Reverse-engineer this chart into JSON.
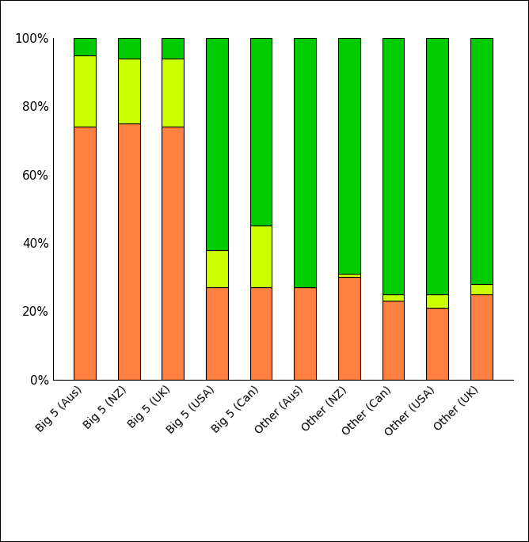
{
  "categories": [
    "Big 5 (Aus)",
    "Big 5 (NZ)",
    "Big 5 (UK)",
    "Big 5 (USA)",
    "Big 5 (Can)",
    "Other (Aus)",
    "Other (NZ)",
    "Other (Can)",
    "Other (USA)",
    "Other (UK)"
  ],
  "metered_time": [
    0.74,
    0.75,
    0.74,
    0.27,
    0.27,
    0.27,
    0.3,
    0.23,
    0.21,
    0.25
  ],
  "metered_loans": [
    0.21,
    0.19,
    0.2,
    0.11,
    0.18,
    0.0,
    0.01,
    0.02,
    0.04,
    0.03
  ],
  "oc_ou": [
    0.05,
    0.06,
    0.06,
    0.62,
    0.55,
    0.73,
    0.69,
    0.75,
    0.75,
    0.72
  ],
  "color_metered_time": "#FF8040",
  "color_metered_loans": "#CCFF00",
  "color_oc_ou": "#00CC00",
  "bar_edge_color": "black",
  "bar_edge_width": 0.8,
  "ylabel": "",
  "ylim": [
    0,
    1.0
  ],
  "yticks": [
    0.0,
    0.2,
    0.4,
    0.6,
    0.8,
    1.0
  ],
  "ytick_labels": [
    "0%",
    "20%",
    "40%",
    "60%",
    "80%",
    "100%"
  ],
  "fig_width": 6.68,
  "fig_height": 6.85,
  "dpi": 100,
  "bar_width": 0.5
}
